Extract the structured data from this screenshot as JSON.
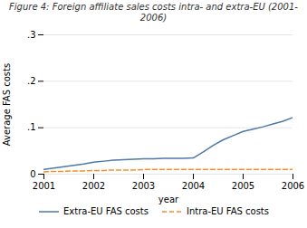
{
  "chart_data": {
    "type": "line",
    "title": "Figure 4: Foreign affiliate sales costs intra- and extra-EU (2001-2006)",
    "x_label": "year",
    "y_label": "Average FAS costs",
    "x": [
      2001,
      2001.2,
      2001.4,
      2001.6,
      2001.8,
      2002.0,
      2002.2,
      2002.4,
      2002.6,
      2002.8,
      2003.0,
      2003.2,
      2003.4,
      2003.6,
      2003.8,
      2004.0,
      2004.2,
      2004.4,
      2004.6,
      2004.8,
      2005.0,
      2005.2,
      2005.4,
      2005.6,
      2005.8,
      2006.0
    ],
    "series": [
      {
        "name": "Extra-EU FAS costs",
        "line_style": "solid",
        "values": [
          0.01,
          0.013,
          0.016,
          0.019,
          0.022,
          0.026,
          0.028,
          0.03,
          0.031,
          0.032,
          0.033,
          0.033,
          0.034,
          0.034,
          0.034,
          0.035,
          0.048,
          0.062,
          0.074,
          0.083,
          0.092,
          0.097,
          0.102,
          0.108,
          0.114,
          0.122
        ]
      },
      {
        "name": "Intra-EU FAS costs",
        "line_style": "dashed",
        "values": [
          0.005,
          0.006,
          0.006,
          0.007,
          0.007,
          0.008,
          0.008,
          0.009,
          0.009,
          0.009,
          0.01,
          0.01,
          0.01,
          0.01,
          0.01,
          0.01,
          0.01,
          0.01,
          0.01,
          0.01,
          0.01,
          0.01,
          0.01,
          0.01,
          0.01,
          0.01
        ]
      }
    ],
    "xlim": [
      2001,
      2006
    ],
    "xticks": [
      2001,
      2002,
      2003,
      2004,
      2005,
      2006
    ],
    "ylim": [
      0,
      0.3
    ],
    "yticks": [
      0,
      {
        "value": 0.1,
        "label": ".1"
      },
      {
        "value": 0.2,
        "label": ".2"
      },
      {
        "value": 0.3,
        "label": ".3"
      }
    ],
    "grid": true,
    "legend": "bottom"
  }
}
